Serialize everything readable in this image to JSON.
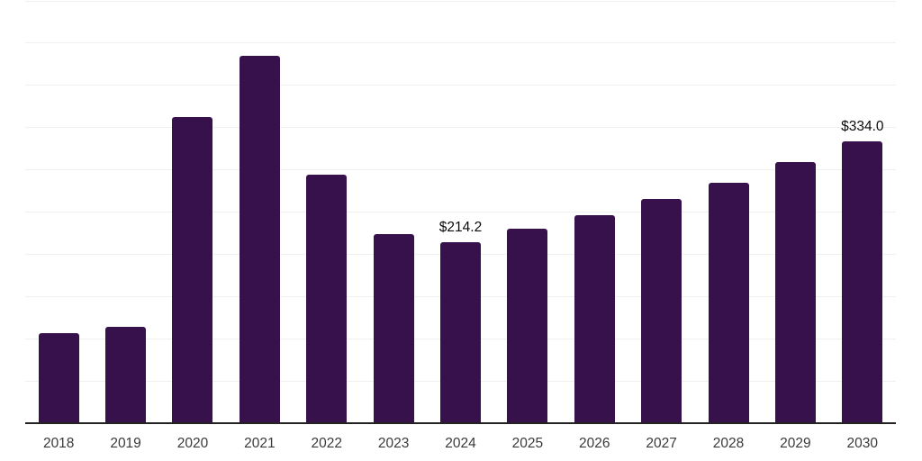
{
  "chart_data": {
    "type": "bar",
    "title": "",
    "xlabel": "",
    "ylabel": "",
    "categories": [
      "2018",
      "2019",
      "2020",
      "2021",
      "2022",
      "2023",
      "2024",
      "2025",
      "2026",
      "2027",
      "2028",
      "2029",
      "2030"
    ],
    "values": [
      107,
      114,
      362,
      435,
      294,
      224,
      214.2,
      230,
      246,
      266,
      285,
      309,
      334
    ],
    "data_labels": [
      null,
      null,
      null,
      null,
      null,
      null,
      "$214.2",
      null,
      null,
      null,
      null,
      null,
      "$334.0"
    ],
    "ylim": [
      0,
      500
    ],
    "gridline_interval": 50,
    "grid": "horizontal-only",
    "y_tick_labels_visible": false,
    "legend": "none",
    "colors": {
      "bar": "#36114B",
      "axis_line": "#232323",
      "gridline": "#f0f0f1",
      "tick_label": "#3a3a3a",
      "data_label": "#0b0b0b",
      "background": "#ffffff"
    }
  }
}
